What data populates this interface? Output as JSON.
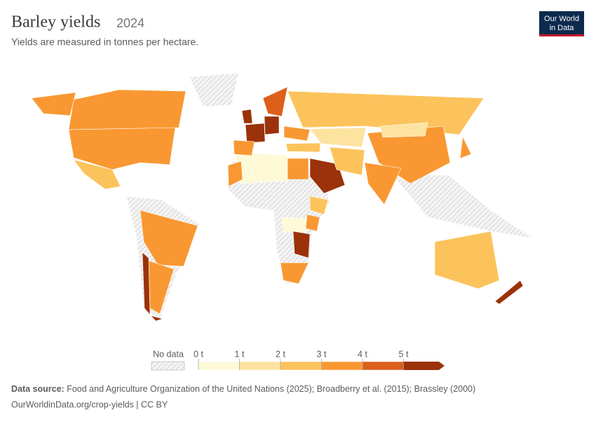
{
  "header": {
    "title": "Barley yields",
    "year": "2024",
    "subtitle": "Yields are measured in tonnes per hectare.",
    "logo": [
      "Our World",
      "in Data"
    ]
  },
  "chart_data": {
    "type": "choropleth",
    "legend": {
      "no_data": "No data",
      "ticks": [
        {
          "value": 0,
          "label": "0 t"
        },
        {
          "value": 1,
          "label": "1 t"
        },
        {
          "value": 2,
          "label": "2 t"
        },
        {
          "value": 3,
          "label": "3 t"
        },
        {
          "value": 4,
          "label": "4 t"
        },
        {
          "value": 5,
          "label": "5 t"
        }
      ],
      "colors": [
        "#fef9d6",
        "#fde3a0",
        "#fcc35c",
        "#f99832",
        "#dc5f1a",
        "#9b320a"
      ]
    },
    "values": [
      3.9,
      3.5,
      3.9,
      2.2,
      3.3,
      3.5,
      5.5,
      0.8,
      6.0,
      6.5,
      6.5,
      3.0,
      4.5,
      2.5,
      3.8,
      2.8,
      1.2,
      3.6,
      1.5,
      3.0,
      6.0,
      3.3,
      0.8,
      3.0,
      2.5,
      3.4,
      6.5,
      3.5,
      2.6,
      6.5,
      3.5,
      2.0
    ]
  },
  "footer": {
    "source_label": "Data source:",
    "source": "Food and Agriculture Organization of the United Nations (2025); Broadberry et al. (2015); Brassley (2000)",
    "url": "OurWorldinData.org/crop-yields | CC BY"
  }
}
